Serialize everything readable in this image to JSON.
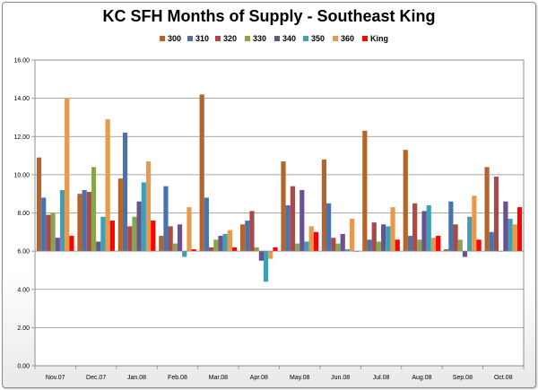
{
  "chart_data": {
    "type": "bar",
    "title": "KC SFH Months of Supply - Southeast King",
    "xlabel": "",
    "ylabel": "",
    "ylim": [
      0,
      16
    ],
    "yticks": [
      "0.00",
      "2.00",
      "4.00",
      "6.00",
      "8.00",
      "10.00",
      "12.00",
      "14.00",
      "16.00"
    ],
    "grid": true,
    "legend_position": "top-right",
    "categories": [
      "Nov.07",
      "Dec.07",
      "Jan.08",
      "Feb.08",
      "Mar.08",
      "Apr.08",
      "May.08",
      "Jun.08",
      "Jul.08",
      "Aug.08",
      "Sep.08",
      "Oct.08"
    ],
    "series": [
      {
        "name": "300",
        "color": "#b5642c",
        "values": [
          10.9,
          9.0,
          9.8,
          6.8,
          14.2,
          7.4,
          10.7,
          10.8,
          12.3,
          11.3,
          6.1,
          10.4
        ]
      },
      {
        "name": "310",
        "color": "#4a74a9",
        "values": [
          8.8,
          9.2,
          12.2,
          9.4,
          8.8,
          7.6,
          8.4,
          8.5,
          6.6,
          6.8,
          8.6,
          7.0
        ]
      },
      {
        "name": "320",
        "color": "#a84a4a",
        "values": [
          7.9,
          9.1,
          7.3,
          7.3,
          6.2,
          8.1,
          9.4,
          6.7,
          7.5,
          8.5,
          7.4,
          9.9
        ]
      },
      {
        "name": "330",
        "color": "#8aa64c",
        "values": [
          8.0,
          10.4,
          7.8,
          6.4,
          6.6,
          6.2,
          6.4,
          6.4,
          6.5,
          6.6,
          6.6,
          6.0
        ]
      },
      {
        "name": "340",
        "color": "#6a5192",
        "values": [
          6.7,
          6.5,
          8.6,
          7.4,
          6.8,
          5.5,
          9.2,
          6.9,
          7.4,
          8.1,
          5.7,
          8.6
        ]
      },
      {
        "name": "350",
        "color": "#3fa0b5",
        "values": [
          9.2,
          7.8,
          9.6,
          5.7,
          6.9,
          4.4,
          6.5,
          6.1,
          7.3,
          8.4,
          7.8,
          7.7
        ]
      },
      {
        "name": "360",
        "color": "#e79a4e",
        "values": [
          14.0,
          12.9,
          10.7,
          8.3,
          7.1,
          5.6,
          7.3,
          7.7,
          8.3,
          6.7,
          8.9,
          7.4
        ]
      },
      {
        "name": "King",
        "color": "#ff0000",
        "values": [
          6.8,
          7.6,
          7.6,
          6.1,
          6.2,
          6.2,
          7.0,
          6.0,
          6.6,
          6.8,
          6.6,
          8.3
        ]
      }
    ]
  }
}
